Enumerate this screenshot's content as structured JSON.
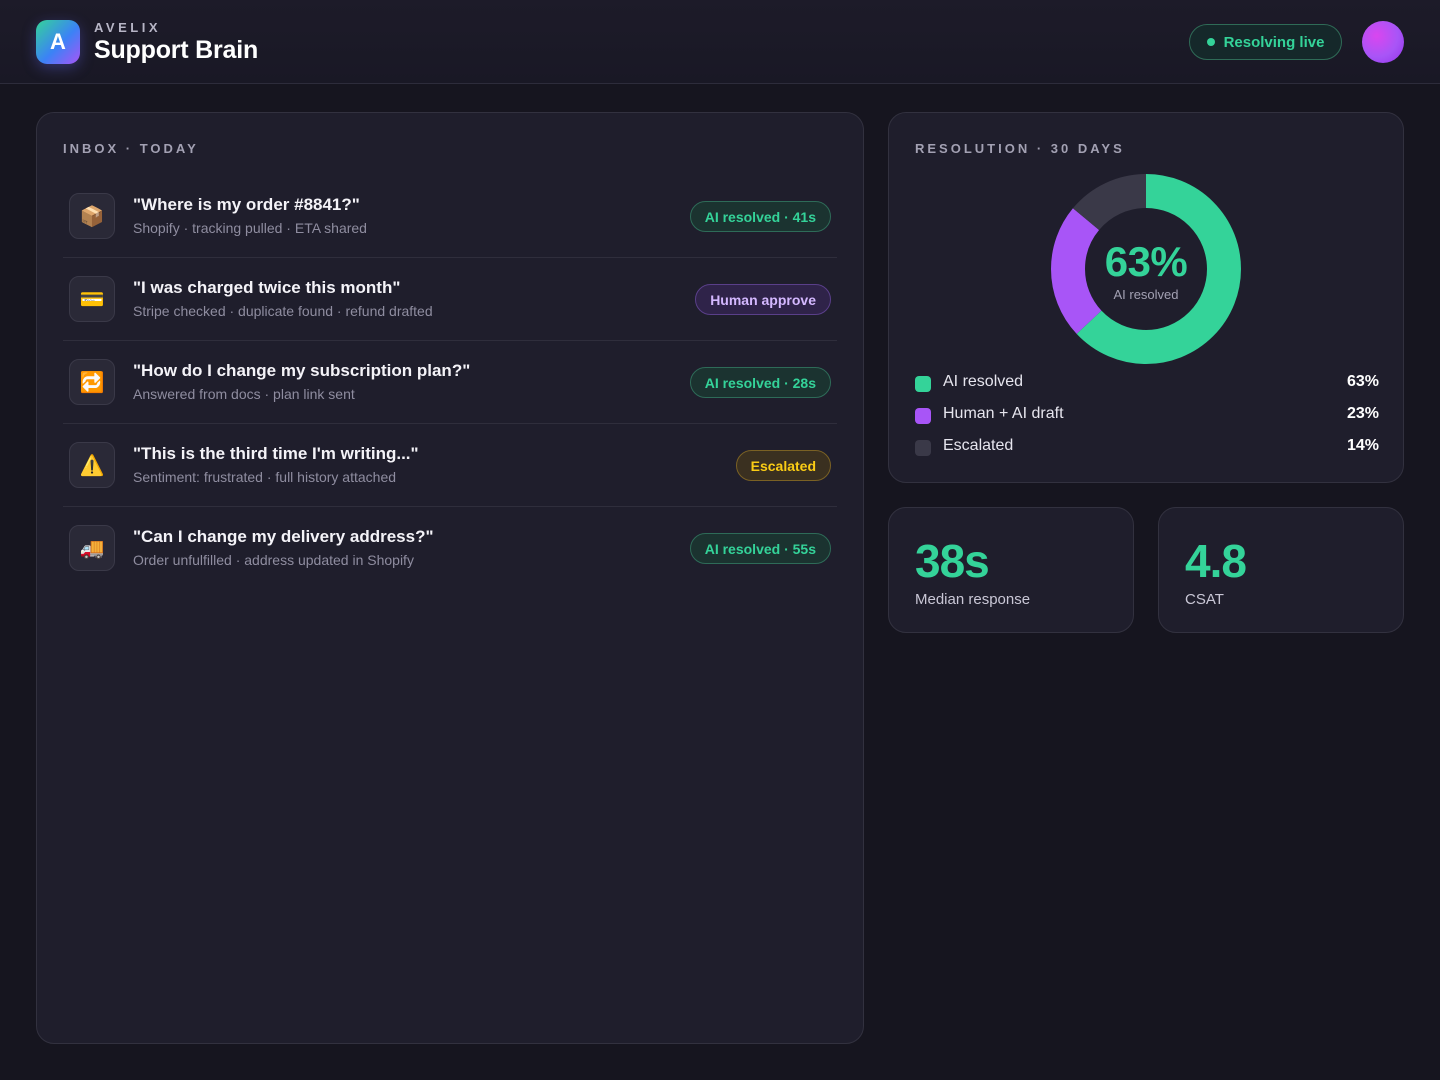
{
  "header": {
    "brand_small": "AVELIX",
    "title": "Support Brain",
    "logo_letter": "A",
    "status_label": "Resolving live"
  },
  "inbox": {
    "label": "INBOX · TODAY",
    "items": [
      {
        "icon": "📦",
        "icon_name": "package-icon",
        "title": "\"Where is my order #8841?\"",
        "subtitle": "Shopify · tracking pulled · ETA shared",
        "badge": "AI resolved · 41s",
        "badge_type": "green"
      },
      {
        "icon": "💳",
        "icon_name": "credit-card-icon",
        "title": "\"I was charged twice this month\"",
        "subtitle": "Stripe checked · duplicate found · refund drafted",
        "badge": "Human approve",
        "badge_type": "purple"
      },
      {
        "icon": "🔁",
        "icon_name": "repeat-icon",
        "title": "\"How do I change my subscription plan?\"",
        "subtitle": "Answered from docs · plan link sent",
        "badge": "AI resolved · 28s",
        "badge_type": "green"
      },
      {
        "icon": "⚠️",
        "icon_name": "warning-icon",
        "title": "\"This is the third time I'm writing...\"",
        "subtitle": "Sentiment: frustrated · full history attached",
        "badge": "Escalated",
        "badge_type": "amber"
      },
      {
        "icon": "🚚",
        "icon_name": "delivery-truck-icon",
        "title": "\"Can I change my delivery address?\"",
        "subtitle": "Order unfulfilled · address updated in Shopify",
        "badge": "AI resolved · 55s",
        "badge_type": "green"
      }
    ]
  },
  "resolution": {
    "label": "RESOLUTION · 30 DAYS",
    "center_value": "63%",
    "center_caption": "AI resolved",
    "segments": [
      {
        "name": "AI resolved",
        "value": 63,
        "display": "63%",
        "color": "#34d399"
      },
      {
        "name": "Human + AI draft",
        "value": 23,
        "display": "23%",
        "color": "#a855f7"
      },
      {
        "name": "Escalated",
        "value": 14,
        "display": "14%",
        "color": "#3a3948"
      }
    ]
  },
  "stats": [
    {
      "value": "38s",
      "caption": "Median response"
    },
    {
      "value": "4.8",
      "caption": "CSAT"
    }
  ]
}
